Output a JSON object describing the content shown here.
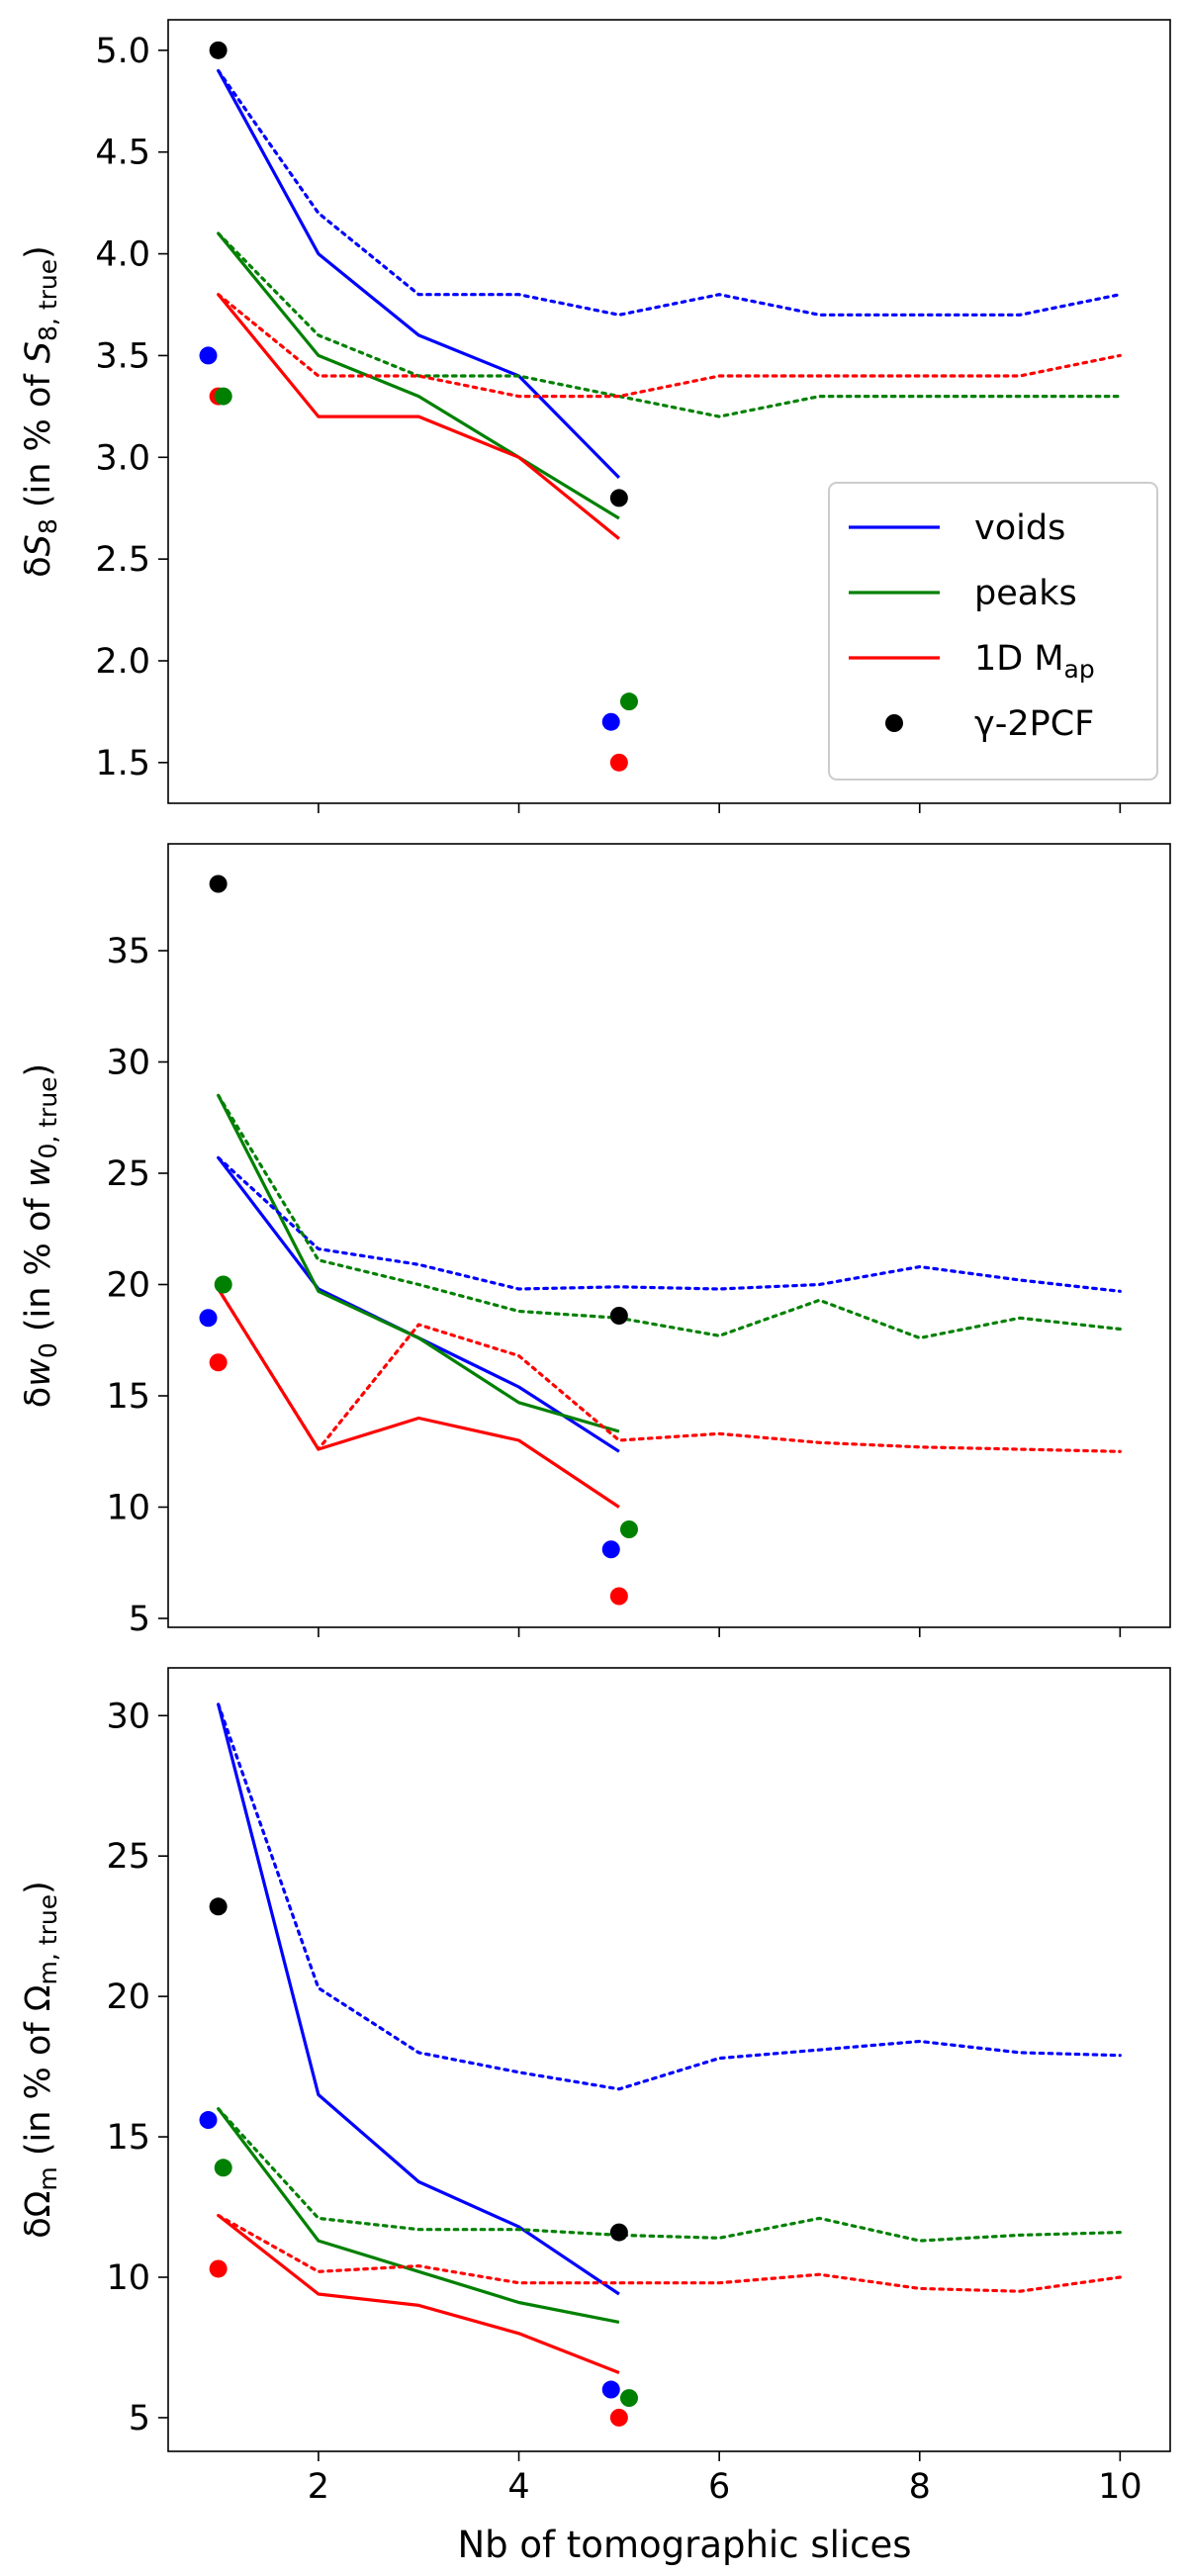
{
  "colors": {
    "voids": "#0000ff",
    "peaks": "#008000",
    "map": "#ff0000",
    "pcf": "#000000"
  },
  "xlabel": "Nb of tomographic slices",
  "xlim": [
    0.5,
    10.5
  ],
  "xticks": [
    2,
    4,
    6,
    8,
    10
  ],
  "legend": {
    "placement": "lower-right (top panel)",
    "entries": [
      {
        "key": "voids",
        "label": "voids",
        "marker": "line"
      },
      {
        "key": "peaks",
        "label": "peaks",
        "marker": "line"
      },
      {
        "key": "map",
        "label": "1D M",
        "sub": "ap",
        "marker": "line"
      },
      {
        "key": "pcf",
        "label": "γ-2PCF",
        "marker": "dot"
      }
    ]
  },
  "chart_data": [
    {
      "type": "line",
      "ylabel": "δS8 (in % of S8, true)",
      "ylabel_parts": {
        "pre": "δ",
        "sym": "S",
        "sub1": "8",
        "mid": " (in % of ",
        "sym2": "S",
        "sub2": "8, true",
        "post": ")"
      },
      "ylim": [
        1.3,
        5.15
      ],
      "yticks": [
        1.5,
        2.0,
        2.5,
        3.0,
        3.5,
        4.0,
        4.5,
        5.0
      ],
      "yticklabels": [
        "1.5",
        "2.0",
        "2.5",
        "3.0",
        "3.5",
        "4.0",
        "4.5",
        "5.0"
      ],
      "series": [
        {
          "key": "voids",
          "style": "solid",
          "x": [
            1,
            2,
            3,
            4,
            5
          ],
          "y": [
            4.9,
            4.0,
            3.6,
            3.4,
            2.9
          ]
        },
        {
          "key": "peaks",
          "style": "solid",
          "x": [
            1,
            2,
            3,
            4,
            5
          ],
          "y": [
            4.1,
            3.5,
            3.3,
            3.0,
            2.7
          ]
        },
        {
          "key": "map",
          "style": "solid",
          "x": [
            1,
            2,
            3,
            4,
            5
          ],
          "y": [
            3.8,
            3.2,
            3.2,
            3.0,
            2.6
          ]
        },
        {
          "key": "voids",
          "style": "dotted",
          "x": [
            1,
            2,
            3,
            4,
            5,
            6,
            7,
            8,
            9,
            10
          ],
          "y": [
            4.9,
            4.2,
            3.8,
            3.8,
            3.7,
            3.8,
            3.7,
            3.7,
            3.7,
            3.8
          ]
        },
        {
          "key": "peaks",
          "style": "dotted",
          "x": [
            1,
            2,
            3,
            4,
            5,
            6,
            7,
            8,
            9,
            10
          ],
          "y": [
            4.1,
            3.6,
            3.4,
            3.4,
            3.3,
            3.2,
            3.3,
            3.3,
            3.3,
            3.3
          ]
        },
        {
          "key": "map",
          "style": "dotted",
          "x": [
            1,
            2,
            3,
            4,
            5,
            6,
            7,
            8,
            9,
            10
          ],
          "y": [
            3.8,
            3.4,
            3.4,
            3.3,
            3.3,
            3.4,
            3.4,
            3.4,
            3.4,
            3.5
          ]
        }
      ],
      "points": [
        {
          "key": "voids",
          "x": 0.9,
          "y": 3.5
        },
        {
          "key": "map",
          "x": 1.0,
          "y": 3.3
        },
        {
          "key": "peaks",
          "x": 1.05,
          "y": 3.3
        },
        {
          "key": "pcf",
          "x": 1.0,
          "y": 5.0
        },
        {
          "key": "voids",
          "x": 4.92,
          "y": 1.7
        },
        {
          "key": "map",
          "x": 5.0,
          "y": 1.5
        },
        {
          "key": "peaks",
          "x": 5.1,
          "y": 1.8
        },
        {
          "key": "pcf",
          "x": 5.0,
          "y": 2.8
        }
      ]
    },
    {
      "type": "line",
      "ylabel": "δw0 (in % of w0, true)",
      "ylabel_parts": {
        "pre": "δ",
        "sym": "w",
        "sub1": "0",
        "mid": " (in % of ",
        "sym2": "w",
        "sub2": "0, true",
        "post": ")"
      },
      "ylim": [
        4.6,
        39.8
      ],
      "yticks": [
        5,
        10,
        15,
        20,
        25,
        30,
        35
      ],
      "yticklabels": [
        "5",
        "10",
        "15",
        "20",
        "25",
        "30",
        "35"
      ],
      "series": [
        {
          "key": "voids",
          "style": "solid",
          "x": [
            1,
            2,
            3,
            4,
            5
          ],
          "y": [
            25.7,
            19.8,
            17.6,
            15.4,
            12.5
          ]
        },
        {
          "key": "peaks",
          "style": "solid",
          "x": [
            1,
            2,
            3,
            4,
            5
          ],
          "y": [
            28.5,
            19.7,
            17.6,
            14.7,
            13.4
          ]
        },
        {
          "key": "map",
          "style": "solid",
          "x": [
            1,
            2,
            3,
            4,
            5
          ],
          "y": [
            19.8,
            12.6,
            14.0,
            13.0,
            10.0
          ]
        },
        {
          "key": "voids",
          "style": "dotted",
          "x": [
            1,
            2,
            3,
            4,
            5,
            6,
            7,
            8,
            9,
            10
          ],
          "y": [
            25.7,
            21.6,
            20.9,
            19.8,
            19.9,
            19.8,
            20.0,
            20.8,
            20.2,
            19.7
          ]
        },
        {
          "key": "peaks",
          "style": "dotted",
          "x": [
            1,
            2,
            3,
            4,
            5,
            6,
            7,
            8,
            9,
            10
          ],
          "y": [
            28.5,
            21.1,
            20.0,
            18.8,
            18.5,
            17.7,
            19.3,
            17.6,
            18.5,
            18.0
          ]
        },
        {
          "key": "map",
          "style": "dotted",
          "x": [
            1,
            2,
            3,
            4,
            5,
            6,
            7,
            8,
            9,
            10
          ],
          "y": [
            19.8,
            12.6,
            18.2,
            16.8,
            13.0,
            13.3,
            12.9,
            12.7,
            12.6,
            12.5
          ]
        }
      ],
      "points": [
        {
          "key": "voids",
          "x": 0.9,
          "y": 18.5
        },
        {
          "key": "map",
          "x": 1.0,
          "y": 16.5
        },
        {
          "key": "peaks",
          "x": 1.05,
          "y": 20.0
        },
        {
          "key": "pcf",
          "x": 1.0,
          "y": 38.0
        },
        {
          "key": "voids",
          "x": 4.92,
          "y": 8.1
        },
        {
          "key": "map",
          "x": 5.0,
          "y": 6.0
        },
        {
          "key": "peaks",
          "x": 5.1,
          "y": 9.0
        },
        {
          "key": "pcf",
          "x": 5.0,
          "y": 18.6
        }
      ]
    },
    {
      "type": "line",
      "ylabel": "δΩm (in % of Ωm, true)",
      "ylabel_parts": {
        "pre": "δ",
        "sym": "Ω",
        "sub1": "m",
        "mid": " (in % of ",
        "sym2": "Ω",
        "sub2": "m, true",
        "post": ")"
      },
      "ylim": [
        3.8,
        31.7
      ],
      "yticks": [
        5,
        10,
        15,
        20,
        25,
        30
      ],
      "yticklabels": [
        "5",
        "10",
        "15",
        "20",
        "25",
        "30"
      ],
      "series": [
        {
          "key": "voids",
          "style": "solid",
          "x": [
            1,
            2,
            3,
            4,
            5
          ],
          "y": [
            30.4,
            16.5,
            13.4,
            11.8,
            9.4
          ]
        },
        {
          "key": "peaks",
          "style": "solid",
          "x": [
            1,
            2,
            3,
            4,
            5
          ],
          "y": [
            16.0,
            11.3,
            10.2,
            9.1,
            8.4
          ]
        },
        {
          "key": "map",
          "style": "solid",
          "x": [
            1,
            2,
            3,
            4,
            5
          ],
          "y": [
            12.2,
            9.4,
            9.0,
            8.0,
            6.6
          ]
        },
        {
          "key": "voids",
          "style": "dotted",
          "x": [
            1,
            2,
            3,
            4,
            5,
            6,
            7,
            8,
            9,
            10
          ],
          "y": [
            30.4,
            20.3,
            18.0,
            17.3,
            16.7,
            17.8,
            18.1,
            18.4,
            18.0,
            17.9
          ]
        },
        {
          "key": "peaks",
          "style": "dotted",
          "x": [
            1,
            2,
            3,
            4,
            5,
            6,
            7,
            8,
            9,
            10
          ],
          "y": [
            16.0,
            12.1,
            11.7,
            11.7,
            11.5,
            11.4,
            12.1,
            11.3,
            11.5,
            11.6
          ]
        },
        {
          "key": "map",
          "style": "dotted",
          "x": [
            1,
            2,
            3,
            4,
            5,
            6,
            7,
            8,
            9,
            10
          ],
          "y": [
            12.2,
            10.2,
            10.4,
            9.8,
            9.8,
            9.8,
            10.1,
            9.6,
            9.5,
            10.0
          ]
        }
      ],
      "points": [
        {
          "key": "voids",
          "x": 0.9,
          "y": 15.6
        },
        {
          "key": "map",
          "x": 1.0,
          "y": 10.3
        },
        {
          "key": "peaks",
          "x": 1.05,
          "y": 13.9
        },
        {
          "key": "pcf",
          "x": 1.0,
          "y": 23.2
        },
        {
          "key": "voids",
          "x": 4.92,
          "y": 6.0
        },
        {
          "key": "map",
          "x": 5.0,
          "y": 5.0
        },
        {
          "key": "peaks",
          "x": 5.1,
          "y": 5.7
        },
        {
          "key": "pcf",
          "x": 5.0,
          "y": 11.6
        }
      ]
    }
  ]
}
